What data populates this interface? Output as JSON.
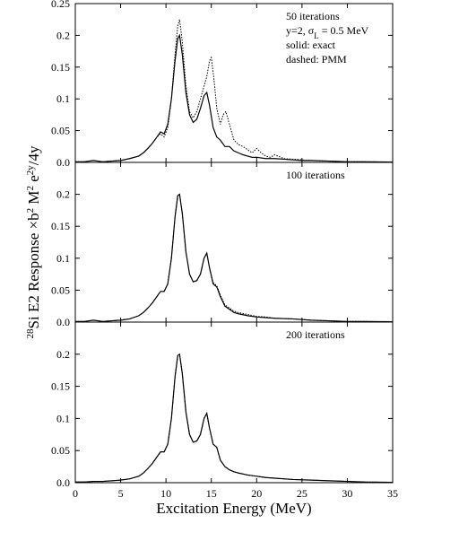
{
  "chart_data": {
    "type": "line",
    "xlabel": "Excitation Energy (MeV)",
    "ylabel": {
      "pre_sup": "28",
      "main": "Si E2 Response ×b",
      "sup1": "2",
      "mid": " M",
      "sup2": "2",
      "mid2": " e",
      "sup3": "2y",
      "tail": "/4y"
    },
    "xlim": [
      0,
      35
    ],
    "x_ticks": [
      0,
      5,
      10,
      15,
      20,
      25,
      30,
      35
    ],
    "x_tick_labels": [
      "0",
      "5",
      "10",
      "15",
      "20",
      "25",
      "30",
      "35"
    ],
    "ylim": [
      0,
      0.25
    ],
    "y_ticks": [
      0,
      0.05,
      0.1,
      0.15,
      0.2
    ],
    "y_tick_labels": [
      "0.0",
      "0.05",
      "0.1",
      "0.15",
      "0.2"
    ],
    "y_top_label": "0.25",
    "legend": {
      "solid": "exact",
      "dashed": "PMM"
    },
    "panels": [
      {
        "annotation": [
          "50 iterations",
          "y=2, σL = 0.5 MeV",
          "solid: exact",
          "dashed: PMM"
        ],
        "series": [
          {
            "style": "solid",
            "x": [
              0,
              1,
              2,
              3,
              4,
              5,
              6,
              7,
              7.5,
              8,
              8.5,
              9,
              9.4,
              9.8,
              10.2,
              10.6,
              11,
              11.3,
              11.5,
              11.8,
              12.2,
              12.6,
              13,
              13.4,
              13.8,
              14.2,
              14.5,
              14.8,
              15.2,
              15.6,
              16,
              16.5,
              17,
              17.5,
              18,
              18.5,
              19,
              19.5,
              20,
              21,
              22,
              23,
              24,
              25,
              26,
              28,
              30,
              32,
              35
            ],
            "y": [
              0.001,
              0.001,
              0.003,
              0.001,
              0.002,
              0.003,
              0.006,
              0.01,
              0.015,
              0.022,
              0.03,
              0.04,
              0.048,
              0.045,
              0.06,
              0.1,
              0.16,
              0.195,
              0.2,
              0.17,
              0.11,
              0.075,
              0.063,
              0.068,
              0.085,
              0.105,
              0.11,
              0.09,
              0.055,
              0.04,
              0.035,
              0.025,
              0.025,
              0.018,
              0.015,
              0.012,
              0.01,
              0.008,
              0.008,
              0.006,
              0.006,
              0.005,
              0.004,
              0.003,
              0.003,
              0.002,
              0.001,
              0.001,
              0.0005
            ]
          },
          {
            "style": "dashed",
            "x": [
              0,
              1,
              2,
              3,
              4,
              5,
              6,
              7,
              7.5,
              8,
              8.5,
              9,
              9.4,
              9.8,
              10.2,
              10.6,
              11,
              11.3,
              11.5,
              11.8,
              12.2,
              12.6,
              13,
              13.4,
              13.8,
              14.2,
              14.5,
              14.8,
              15,
              15.3,
              15.6,
              16,
              16.3,
              16.6,
              17,
              17.5,
              18,
              18.5,
              19,
              19.5,
              20,
              20.5,
              21,
              21.5,
              22,
              23,
              24,
              25,
              26,
              28,
              30,
              32,
              35
            ],
            "y": [
              0.001,
              0.001,
              0.003,
              0.001,
              0.002,
              0.003,
              0.006,
              0.01,
              0.015,
              0.022,
              0.03,
              0.04,
              0.045,
              0.04,
              0.055,
              0.1,
              0.17,
              0.215,
              0.225,
              0.19,
              0.12,
              0.08,
              0.07,
              0.08,
              0.1,
              0.12,
              0.135,
              0.16,
              0.165,
              0.13,
              0.085,
              0.06,
              0.075,
              0.08,
              0.06,
              0.035,
              0.028,
              0.025,
              0.02,
              0.015,
              0.022,
              0.015,
              0.01,
              0.008,
              0.012,
              0.006,
              0.005,
              0.004,
              0.003,
              0.002,
              0.001,
              0.001,
              0.0005
            ]
          }
        ]
      },
      {
        "annotation": [
          "100 iterations"
        ],
        "series": [
          {
            "style": "solid",
            "x": [
              0,
              1,
              2,
              3,
              4,
              5,
              6,
              7,
              7.5,
              8,
              8.5,
              9,
              9.4,
              9.8,
              10.2,
              10.6,
              11,
              11.3,
              11.5,
              11.8,
              12.2,
              12.6,
              13,
              13.4,
              13.8,
              14.2,
              14.5,
              14.8,
              15.2,
              15.6,
              16,
              16.5,
              17,
              17.5,
              18,
              19,
              20,
              21,
              22,
              24,
              26,
              28,
              30,
              32,
              35
            ],
            "y": [
              0.001,
              0.001,
              0.003,
              0.001,
              0.002,
              0.003,
              0.005,
              0.01,
              0.015,
              0.022,
              0.03,
              0.04,
              0.048,
              0.048,
              0.06,
              0.1,
              0.165,
              0.198,
              0.2,
              0.17,
              0.11,
              0.075,
              0.063,
              0.065,
              0.075,
              0.1,
              0.108,
              0.085,
              0.06,
              0.055,
              0.04,
              0.025,
              0.02,
              0.015,
              0.013,
              0.01,
              0.008,
              0.007,
              0.006,
              0.005,
              0.003,
              0.002,
              0.001,
              0.001,
              0.0005
            ]
          },
          {
            "style": "dashed",
            "x": [
              0,
              1,
              2,
              3,
              4,
              5,
              6,
              7,
              7.5,
              8,
              8.5,
              9,
              9.4,
              9.8,
              10.2,
              10.6,
              11,
              11.3,
              11.5,
              11.8,
              12.2,
              12.6,
              13,
              13.4,
              13.8,
              14.2,
              14.5,
              14.8,
              15.2,
              15.6,
              16,
              16.5,
              17,
              17.5,
              18,
              19,
              20,
              21,
              22,
              24,
              26,
              28,
              30,
              32,
              35
            ],
            "y": [
              0.001,
              0.001,
              0.003,
              0.001,
              0.002,
              0.003,
              0.005,
              0.01,
              0.015,
              0.022,
              0.03,
              0.04,
              0.048,
              0.048,
              0.06,
              0.1,
              0.165,
              0.198,
              0.2,
              0.17,
              0.11,
              0.075,
              0.063,
              0.065,
              0.075,
              0.1,
              0.108,
              0.085,
              0.062,
              0.057,
              0.042,
              0.027,
              0.022,
              0.017,
              0.015,
              0.012,
              0.009,
              0.008,
              0.006,
              0.005,
              0.003,
              0.002,
              0.001,
              0.001,
              0.0005
            ]
          }
        ]
      },
      {
        "annotation": [
          "200 iterations"
        ],
        "series": [
          {
            "style": "solid",
            "x": [
              0,
              1,
              2,
              3,
              4,
              5,
              6,
              7,
              7.5,
              8,
              8.5,
              9,
              9.4,
              9.8,
              10.2,
              10.6,
              11,
              11.3,
              11.5,
              11.8,
              12.2,
              12.6,
              13,
              13.4,
              13.8,
              14.2,
              14.5,
              14.8,
              15.2,
              15.6,
              16,
              16.5,
              17,
              17.5,
              18,
              19,
              20,
              21,
              22,
              24,
              26,
              28,
              30,
              32,
              35
            ],
            "y": [
              0.001,
              0.001,
              0.002,
              0.002,
              0.003,
              0.004,
              0.006,
              0.01,
              0.015,
              0.022,
              0.03,
              0.04,
              0.048,
              0.048,
              0.06,
              0.1,
              0.165,
              0.198,
              0.2,
              0.17,
              0.11,
              0.075,
              0.063,
              0.065,
              0.075,
              0.1,
              0.108,
              0.085,
              0.06,
              0.055,
              0.035,
              0.025,
              0.02,
              0.017,
              0.015,
              0.012,
              0.01,
              0.008,
              0.007,
              0.005,
              0.004,
              0.003,
              0.002,
              0.001,
              0.0005
            ]
          },
          {
            "style": "dashed",
            "x": [
              0,
              1,
              2,
              3,
              4,
              5,
              6,
              7,
              7.5,
              8,
              8.5,
              9,
              9.4,
              9.8,
              10.2,
              10.6,
              11,
              11.3,
              11.5,
              11.8,
              12.2,
              12.6,
              13,
              13.4,
              13.8,
              14.2,
              14.5,
              14.8,
              15.2,
              15.6,
              16,
              16.5,
              17,
              17.5,
              18,
              19,
              20,
              21,
              22,
              24,
              26,
              28,
              30,
              32,
              35
            ],
            "y": [
              0.001,
              0.001,
              0.002,
              0.002,
              0.003,
              0.004,
              0.006,
              0.01,
              0.015,
              0.022,
              0.03,
              0.04,
              0.048,
              0.048,
              0.06,
              0.1,
              0.165,
              0.198,
              0.2,
              0.17,
              0.11,
              0.075,
              0.063,
              0.065,
              0.075,
              0.1,
              0.108,
              0.085,
              0.06,
              0.055,
              0.035,
              0.025,
              0.02,
              0.017,
              0.015,
              0.012,
              0.01,
              0.008,
              0.007,
              0.005,
              0.004,
              0.003,
              0.002,
              0.001,
              0.0005
            ]
          }
        ]
      }
    ]
  }
}
